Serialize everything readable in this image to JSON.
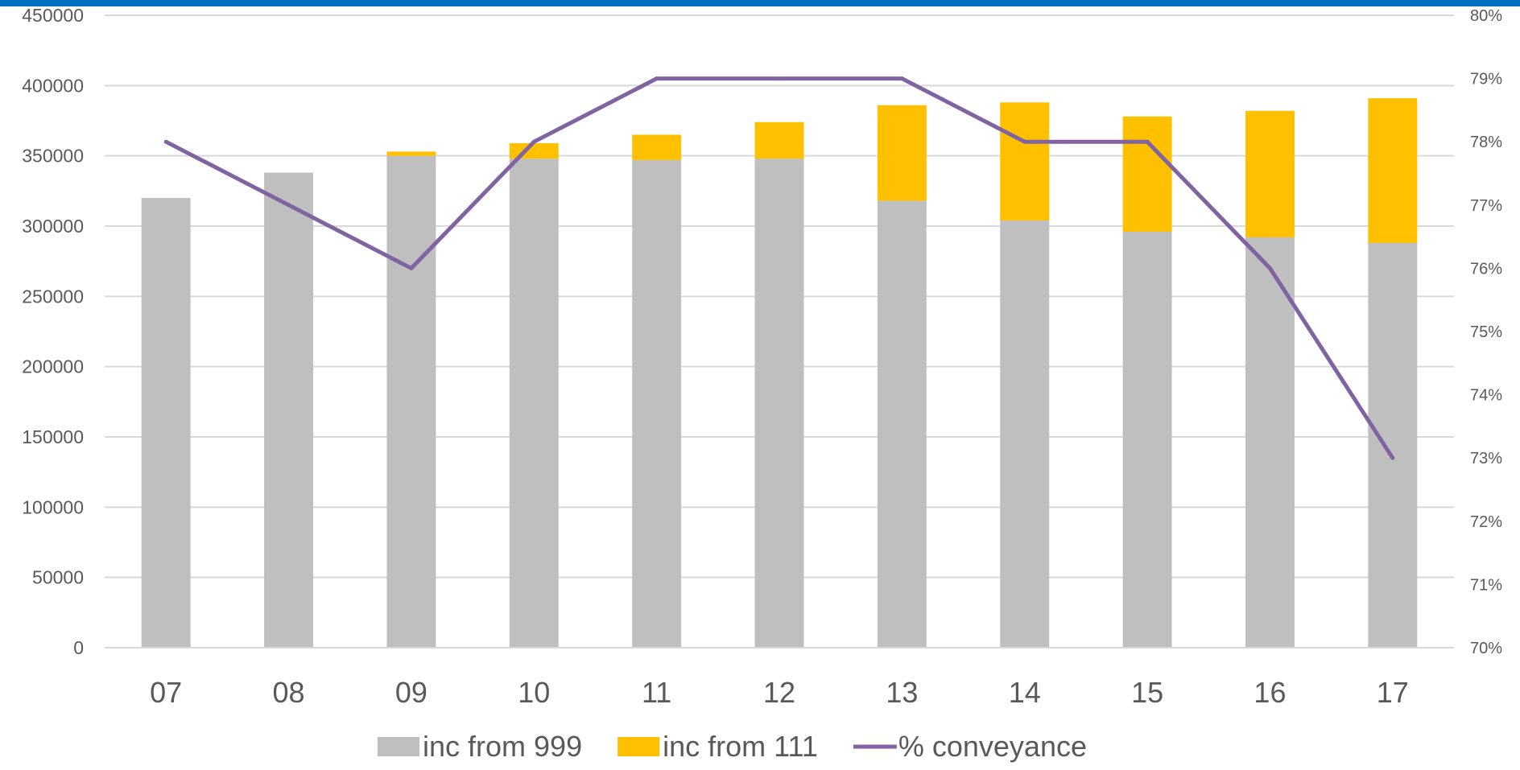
{
  "chart_data": {
    "type": "bar",
    "stacked": true,
    "categories": [
      "07",
      "08",
      "09",
      "10",
      "11",
      "12",
      "13",
      "14",
      "15",
      "16",
      "17"
    ],
    "series": [
      {
        "name": "inc from 999",
        "kind": "bar",
        "axis": "left",
        "color": "#bfbfbf",
        "values": [
          320000,
          338000,
          350000,
          348000,
          347000,
          348000,
          318000,
          304000,
          296000,
          292000,
          288000
        ]
      },
      {
        "name": "inc from 111",
        "kind": "bar",
        "axis": "left",
        "color": "#ffc000",
        "values": [
          0,
          0,
          3000,
          11000,
          18000,
          26000,
          68000,
          84000,
          82000,
          90000,
          103000
        ]
      },
      {
        "name": "% conveyance",
        "kind": "line",
        "axis": "right",
        "color": "#8064a2",
        "values": [
          0.78,
          0.77,
          0.76,
          0.78,
          0.79,
          0.79,
          0.79,
          0.78,
          0.78,
          0.76,
          0.73
        ]
      }
    ],
    "y_left": {
      "range": [
        0,
        450000
      ],
      "ticks": [
        "0",
        "50000",
        "100000",
        "150000",
        "200000",
        "250000",
        "300000",
        "350000",
        "400000",
        "450000"
      ]
    },
    "y_right": {
      "range": [
        0.7,
        0.8
      ],
      "ticks": [
        "70%",
        "71%",
        "72%",
        "73%",
        "74%",
        "75%",
        "76%",
        "77%",
        "78%",
        "79%",
        "80%"
      ]
    },
    "grid": true,
    "legend_position": "bottom",
    "colors": {
      "top_bar": "#0070c0",
      "grid": "#d9d9d9",
      "text": "#595959"
    }
  }
}
